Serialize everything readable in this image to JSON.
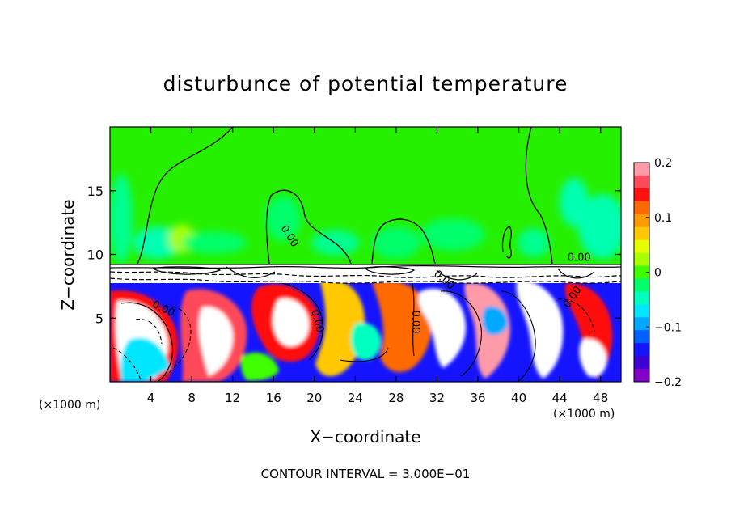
{
  "chart_data": {
    "type": "heatmap",
    "title": "disturbunce of potential temperature",
    "xlabel": "X−coordinate",
    "ylabel": "Z−coordinate",
    "x_unit_label": "(×1000 m)",
    "y_unit_label": "(×1000 m)",
    "footer": "CONTOUR INTERVAL = 3.000E−01",
    "xlim": [
      0,
      50
    ],
    "ylim": [
      0,
      20
    ],
    "x_ticks": [
      4,
      8,
      12,
      16,
      20,
      24,
      28,
      32,
      36,
      40,
      44,
      48
    ],
    "y_ticks": [
      5,
      10,
      15
    ],
    "colorbar": {
      "vmin": -0.2,
      "vmax": 0.2,
      "tick_values": [
        0.2,
        0.1,
        0,
        -0.1,
        -0.2
      ],
      "tick_labels": [
        "0.2",
        "0.1",
        "0",
        "−0.1",
        "−0.2"
      ],
      "colors": [
        "#ff9aa8",
        "#ff4a5a",
        "#ff1010",
        "#ff6a00",
        "#ff9a00",
        "#ffc800",
        "#e6ff00",
        "#a8ff00",
        "#40ff00",
        "#00ff6a",
        "#00ffc0",
        "#00e6ff",
        "#00a8ff",
        "#0060ff",
        "#1414ff",
        "#3c00d2",
        "#8200c8"
      ]
    },
    "contour_labels": [
      {
        "text": "0.00",
        "x": 17.3,
        "y": 11.3
      },
      {
        "text": "0.00",
        "x": 45.9,
        "y": 9.5
      },
      {
        "text": "0.00",
        "x": 5.1,
        "y": 5.5
      },
      {
        "text": "0.00",
        "x": 20.0,
        "y": 4.7
      },
      {
        "text": "0.00",
        "x": 29.6,
        "y": 4.7
      },
      {
        "text": "0.00",
        "x": 32.5,
        "y": 7.8
      },
      {
        "text": "0.00",
        "x": 45.5,
        "y": 6.5
      }
    ]
  }
}
